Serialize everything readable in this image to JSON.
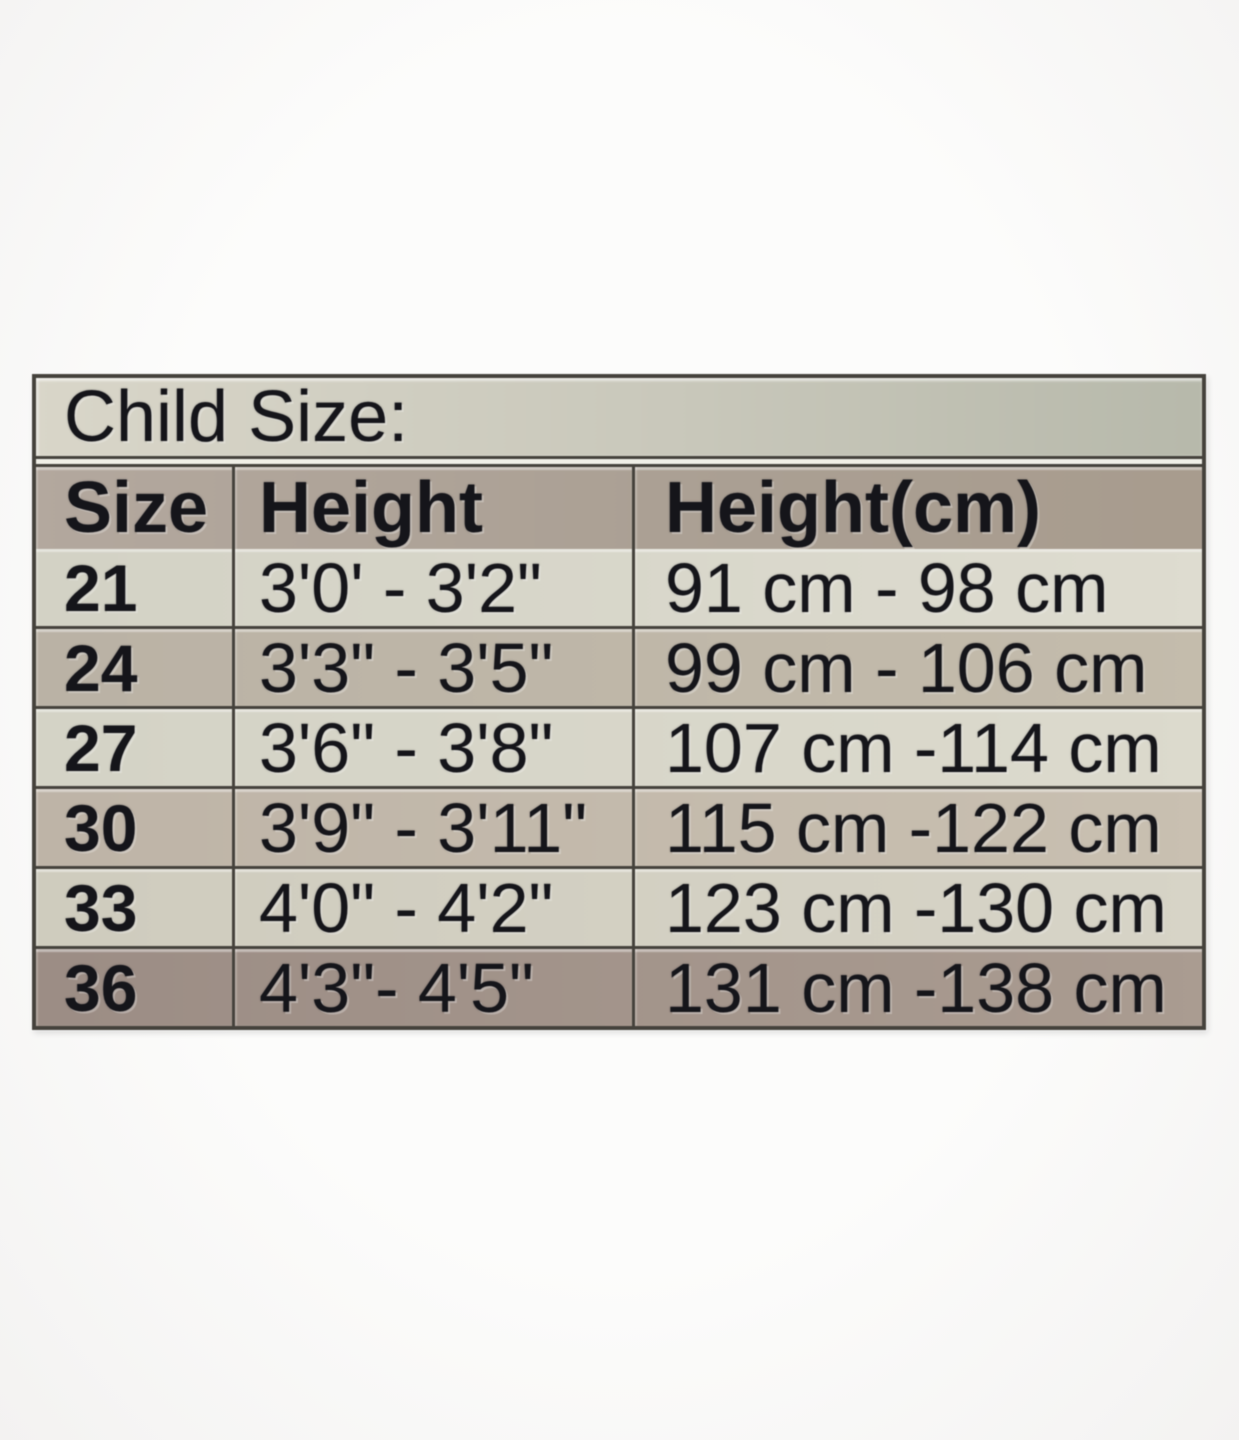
{
  "page": {
    "background": "#fbfbfa",
    "table_border_color": "#45423c",
    "text_color": "#15151a",
    "band_color_light": "#d9d6c9",
    "band_color_dark": "#a89c8e"
  },
  "chart_data": {
    "type": "table",
    "title": "Child Size:",
    "columns": [
      "Size",
      "Height",
      "Height(cm)"
    ],
    "rows": [
      {
        "size": "21",
        "height": "3'0' - 3'2\"",
        "height_cm": "91 cm - 98 cm"
      },
      {
        "size": "24",
        "height": "3'3\" - 3'5\"",
        "height_cm": "99 cm - 106 cm"
      },
      {
        "size": "27",
        "height": "3'6\" - 3'8\"",
        "height_cm": "107 cm -114 cm"
      },
      {
        "size": "30",
        "height": "3'9\" - 3'11\"",
        "height_cm": "115 cm -122 cm"
      },
      {
        "size": "33",
        "height": "4'0\" - 4'2\"",
        "height_cm": "123 cm -130 cm"
      },
      {
        "size": "36",
        "height": "4'3\"- 4'5\"",
        "height_cm": "131 cm -138 cm"
      }
    ]
  }
}
